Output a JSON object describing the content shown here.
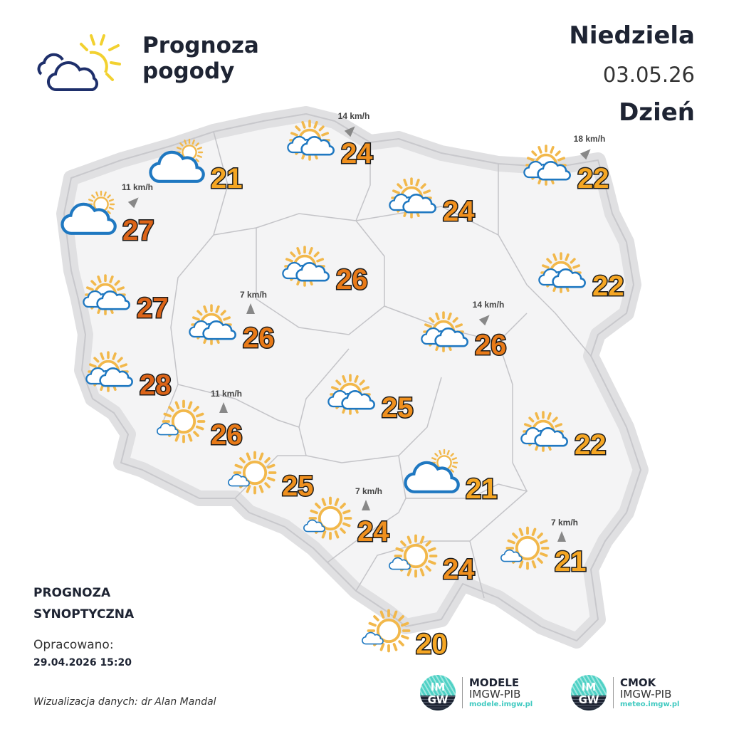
{
  "header": {
    "title_line1": "Prognoza",
    "title_line2": "pogody",
    "day": "Niedziela",
    "date": "03.05.26",
    "part_of_day": "Dzień"
  },
  "footer": {
    "label_line1": "PROGNOZA",
    "label_line2": "SYNOPTYCZNA",
    "prepared_label": "Opracowano:",
    "prepared_date": "29.04.2026 15:20",
    "credit": "Wizualizacja danych: dr Alan Mandal"
  },
  "logos": [
    {
      "badge_top": "IM",
      "badge_bottom": "GW",
      "name": "MODELE",
      "org": "IMGW-PIB",
      "url": "modele.imgw.pl"
    },
    {
      "badge_top": "IM",
      "badge_bottom": "GW",
      "name": "CMOK",
      "org": "IMGW-PIB",
      "url": "meteo.imgw.pl"
    }
  ],
  "colors": {
    "t20_22": "#f5a623",
    "t24_25": "#f0901e",
    "t26": "#e87a18",
    "t27_28": "#dc6418",
    "sun": "#f2b84b",
    "cloud_outline": "#1f78c1",
    "map_fill": "#f4f4f5",
    "map_halo": "#e2e2e4"
  },
  "locations": [
    {
      "icon": "cloudy-sun",
      "temp": "21"
    },
    {
      "icon": "partly-cloudy",
      "temp": "24",
      "wind": "14 km/h",
      "wind_dir": "NE"
    },
    {
      "icon": "partly-cloudy",
      "temp": "22",
      "wind": "18 km/h",
      "wind_dir": "NE"
    },
    {
      "icon": "cloudy-sun",
      "temp": "27",
      "wind": "11 km/h",
      "wind_dir": "NE"
    },
    {
      "icon": "partly-cloudy",
      "temp": "24"
    },
    {
      "icon": "partly-cloudy",
      "temp": "26"
    },
    {
      "icon": "partly-cloudy",
      "temp": "22"
    },
    {
      "icon": "partly-cloudy",
      "temp": "27"
    },
    {
      "icon": "partly-cloudy",
      "temp": "26",
      "wind": "7 km/h",
      "wind_dir": "N"
    },
    {
      "icon": "partly-cloudy",
      "temp": "26",
      "wind": "14 km/h",
      "wind_dir": "NE"
    },
    {
      "icon": "partly-cloudy",
      "temp": "28"
    },
    {
      "icon": "partly-cloudy",
      "temp": "25"
    },
    {
      "icon": "sunny-small-cloud",
      "temp": "26",
      "wind": "11 km/h",
      "wind_dir": "N"
    },
    {
      "icon": "partly-cloudy",
      "temp": "22"
    },
    {
      "icon": "sunny-small-cloud",
      "temp": "25"
    },
    {
      "icon": "cloudy-sun",
      "temp": "21"
    },
    {
      "icon": "sunny-small-cloud",
      "temp": "24",
      "wind": "7 km/h",
      "wind_dir": "N"
    },
    {
      "icon": "sunny-small-cloud",
      "temp": "24"
    },
    {
      "icon": "sunny-small-cloud",
      "temp": "21",
      "wind": "7 km/h",
      "wind_dir": "N"
    },
    {
      "icon": "sunny-small-cloud",
      "temp": "20"
    }
  ]
}
